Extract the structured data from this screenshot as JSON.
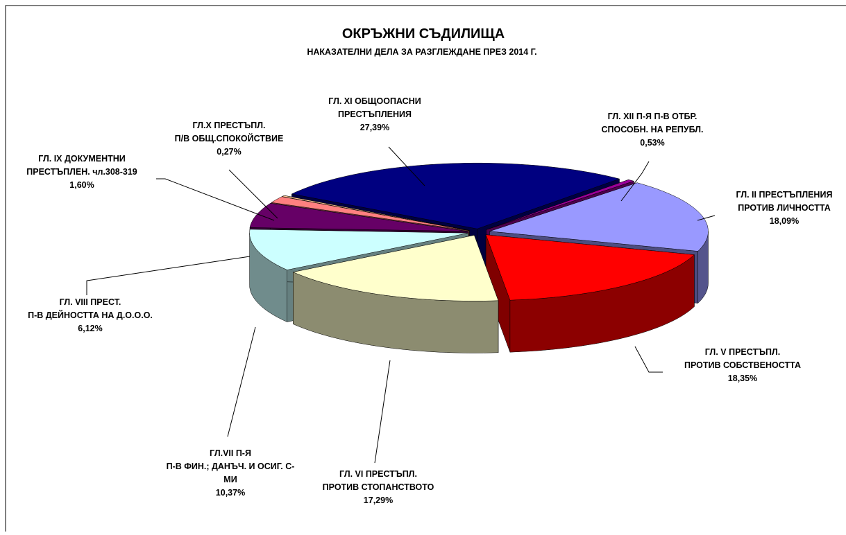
{
  "chart_data": {
    "type": "pie",
    "title": "ОКРЪЖНИ СЪДИЛИЩА",
    "subtitle": "НАКАЗАТЕЛНИ ДЕЛА ЗА РАЗГЛЕЖДАНЕ ПРЕЗ 2014 Г.",
    "categories": [
      "ГЛ. XI  ОБЩООПАСНИ\nПРЕСТЪПЛЕНИЯ",
      "ГЛ. XII П-Я П-В ОТБР.\nСПОСОБН. НА РЕПУБЛ.",
      "ГЛ. II ПРЕСТЪПЛЕНИЯ\nПРОТИВ ЛИЧНОСТТА",
      "ГЛ. V ПРЕСТЪПЛ.\nПРОТИВ СОБСТВЕНОСТТА",
      "ГЛ. VI ПРЕСТЪПЛ.\nПРОТИВ СТОПАНСТВОТО",
      "ГЛ.VII П-Я\nП-В ФИН.; ДАНЪЧ. И ОСИГ. С-\nМИ",
      "ГЛ. VIII ПРЕСТ.\nП-В ДЕЙНОСТТА НА Д.О.О.О.",
      "ГЛ. IX  ДОКУМЕНТНИ\nПРЕСТЪПЛЕН. чл.308-319",
      "ГЛ.X ПРЕСТЪПЛ.\nП/В ОБЩ.СПОКОЙСТВИЕ"
    ],
    "values": [
      27.39,
      0.53,
      18.09,
      18.35,
      17.29,
      10.37,
      6.12,
      1.6,
      0.27
    ],
    "value_labels": [
      "27,39%",
      "0,53%",
      "18,09%",
      "18,35%",
      "17,29%",
      "10,37%",
      "6,12%",
      "1,60%",
      "0,27%"
    ],
    "colors": [
      "#000080",
      "#990099",
      "#9999ff",
      "#ff0000",
      "#ffffcc",
      "#ccffff",
      "#660066",
      "#ff8080",
      "#ffcc99"
    ]
  }
}
